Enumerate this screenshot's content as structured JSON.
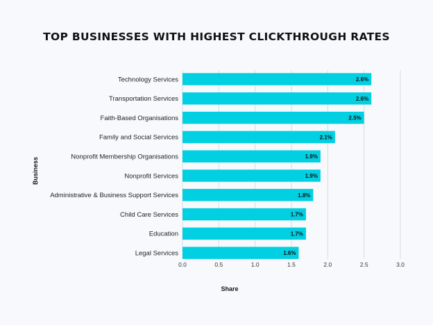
{
  "chart_data": {
    "type": "bar",
    "orientation": "horizontal",
    "title": "TOP BUSINESSES WITH HIGHEST CLICKTHROUGH RATES",
    "xlabel": "Share",
    "ylabel": "Business",
    "categories": [
      "Technology Services",
      "Transportation Services",
      "Faith-Based Organisations",
      "Family and Social Services",
      "Nonprofit Membership Organisations",
      "Nonprofit Services",
      "Administrative & Business Support Services",
      "Child Care Services",
      "Education",
      "Legal Services"
    ],
    "values": [
      2.6,
      2.6,
      2.5,
      2.1,
      1.9,
      1.9,
      1.8,
      1.7,
      1.7,
      1.6
    ],
    "value_labels": [
      "2.6%",
      "2.6%",
      "2.5%",
      "2.1%",
      "1.9%",
      "1.9%",
      "1.8%",
      "1.7%",
      "1.7%",
      "1.6%"
    ],
    "xlim": [
      0,
      3.0
    ],
    "xticks": [
      0.0,
      0.5,
      1.0,
      1.5,
      2.0,
      2.5,
      3.0
    ],
    "xtick_labels": [
      "0.0",
      "0.5",
      "1.0",
      "1.5",
      "2.0",
      "2.5",
      "3.0"
    ],
    "grid": "vertical",
    "bar_color": "#00d0e2"
  }
}
